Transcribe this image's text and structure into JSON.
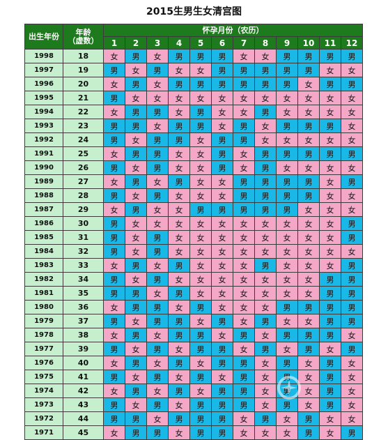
{
  "title": "2015生男生女清宫图",
  "headers": {
    "birth_year": "出生年份",
    "age_line1": "年龄",
    "age_line2": "（虚数）",
    "month_title": "怀孕月份（农历）",
    "months": [
      "1",
      "2",
      "3",
      "4",
      "5",
      "6",
      "7",
      "8",
      "9",
      "10",
      "11",
      "12"
    ]
  },
  "colors": {
    "boy": "#19b8e6",
    "girl": "#f4a7c7",
    "header": "#1d7a1d",
    "side": "#c6efce"
  },
  "rows": [
    {
      "year": "1998",
      "age": "18",
      "m": [
        "女",
        "男",
        "女",
        "男",
        "男",
        "男",
        "女",
        "女",
        "男",
        "男",
        "男",
        "男"
      ]
    },
    {
      "year": "1997",
      "age": "19",
      "m": [
        "男",
        "女",
        "男",
        "女",
        "女",
        "男",
        "男",
        "男",
        "男",
        "男",
        "女",
        "女"
      ]
    },
    {
      "year": "1996",
      "age": "20",
      "m": [
        "女",
        "男",
        "女",
        "男",
        "男",
        "男",
        "男",
        "男",
        "男",
        "女",
        "男",
        "男"
      ]
    },
    {
      "year": "1995",
      "age": "21",
      "m": [
        "男",
        "女",
        "女",
        "女",
        "女",
        "女",
        "女",
        "女",
        "女",
        "女",
        "女",
        "女"
      ]
    },
    {
      "year": "1994",
      "age": "22",
      "m": [
        "女",
        "男",
        "男",
        "女",
        "男",
        "女",
        "女",
        "男",
        "女",
        "女",
        "女",
        "女"
      ]
    },
    {
      "year": "1993",
      "age": "23",
      "m": [
        "男",
        "男",
        "女",
        "男",
        "男",
        "女",
        "男",
        "女",
        "男",
        "男",
        "男",
        "女"
      ]
    },
    {
      "year": "1992",
      "age": "24",
      "m": [
        "男",
        "女",
        "男",
        "男",
        "女",
        "男",
        "男",
        "女",
        "女",
        "女",
        "女",
        "女"
      ]
    },
    {
      "year": "1991",
      "age": "25",
      "m": [
        "女",
        "男",
        "男",
        "女",
        "女",
        "男",
        "女",
        "男",
        "男",
        "男",
        "男",
        "男"
      ]
    },
    {
      "year": "1990",
      "age": "26",
      "m": [
        "男",
        "女",
        "男",
        "女",
        "女",
        "男",
        "女",
        "男",
        "女",
        "女",
        "女",
        "女"
      ]
    },
    {
      "year": "1989",
      "age": "27",
      "m": [
        "女",
        "男",
        "女",
        "男",
        "女",
        "女",
        "男",
        "男",
        "男",
        "男",
        "女",
        "男"
      ]
    },
    {
      "year": "1988",
      "age": "28",
      "m": [
        "男",
        "女",
        "男",
        "女",
        "女",
        "女",
        "男",
        "男",
        "男",
        "男",
        "女",
        "女"
      ]
    },
    {
      "year": "1987",
      "age": "29",
      "m": [
        "女",
        "男",
        "女",
        "女",
        "男",
        "男",
        "男",
        "男",
        "男",
        "女",
        "女",
        "女"
      ]
    },
    {
      "year": "1986",
      "age": "30",
      "m": [
        "男",
        "女",
        "女",
        "女",
        "女",
        "女",
        "女",
        "女",
        "女",
        "女",
        "女",
        "男"
      ]
    },
    {
      "year": "1985",
      "age": "31",
      "m": [
        "男",
        "女",
        "男",
        "女",
        "女",
        "女",
        "女",
        "女",
        "女",
        "女",
        "女",
        "男"
      ]
    },
    {
      "year": "1984",
      "age": "32",
      "m": [
        "男",
        "女",
        "男",
        "女",
        "女",
        "女",
        "女",
        "女",
        "女",
        "女",
        "女",
        "女"
      ]
    },
    {
      "year": "1983",
      "age": "33",
      "m": [
        "女",
        "男",
        "女",
        "男",
        "女",
        "女",
        "女",
        "男",
        "女",
        "女",
        "女",
        "男"
      ]
    },
    {
      "year": "1982",
      "age": "34",
      "m": [
        "男",
        "女",
        "男",
        "女",
        "女",
        "女",
        "女",
        "女",
        "女",
        "女",
        "男",
        "男"
      ]
    },
    {
      "year": "1981",
      "age": "35",
      "m": [
        "男",
        "男",
        "女",
        "男",
        "女",
        "女",
        "女",
        "女",
        "女",
        "女",
        "男",
        "男"
      ]
    },
    {
      "year": "1980",
      "age": "36",
      "m": [
        "女",
        "男",
        "男",
        "女",
        "男",
        "女",
        "女",
        "女",
        "男",
        "男",
        "男",
        "男"
      ]
    },
    {
      "year": "1979",
      "age": "37",
      "m": [
        "男",
        "女",
        "男",
        "男",
        "女",
        "男",
        "女",
        "男",
        "女",
        "女",
        "男",
        "男"
      ]
    },
    {
      "year": "1978",
      "age": "38",
      "m": [
        "女",
        "男",
        "女",
        "男",
        "男",
        "女",
        "男",
        "女",
        "男",
        "男",
        "男",
        "女"
      ]
    },
    {
      "year": "1977",
      "age": "39",
      "m": [
        "男",
        "女",
        "男",
        "女",
        "男",
        "男",
        "女",
        "男",
        "女",
        "男",
        "女",
        "男"
      ]
    },
    {
      "year": "1976",
      "age": "40",
      "m": [
        "女",
        "男",
        "女",
        "男",
        "女",
        "男",
        "男",
        "女",
        "男",
        "女",
        "男",
        "女"
      ]
    },
    {
      "year": "1975",
      "age": "41",
      "m": [
        "男",
        "女",
        "男",
        "女",
        "男",
        "女",
        "男",
        "女",
        "男",
        "女",
        "男",
        "女"
      ]
    },
    {
      "year": "1974",
      "age": "42",
      "m": [
        "女",
        "男",
        "女",
        "男",
        "女",
        "男",
        "男",
        "女",
        "男",
        "女",
        "男",
        "女"
      ]
    },
    {
      "year": "1973",
      "age": "43",
      "m": [
        "男",
        "女",
        "男",
        "女",
        "男",
        "男",
        "男",
        "女",
        "男",
        "女",
        "男",
        "女"
      ]
    },
    {
      "year": "1972",
      "age": "44",
      "m": [
        "男",
        "男",
        "女",
        "男",
        "男",
        "男",
        "女",
        "男",
        "女",
        "男",
        "女",
        "女"
      ]
    },
    {
      "year": "1971",
      "age": "45",
      "m": [
        "女",
        "男",
        "男",
        "女",
        "男",
        "男",
        "女",
        "女",
        "女",
        "男",
        "女",
        "男"
      ]
    }
  ]
}
